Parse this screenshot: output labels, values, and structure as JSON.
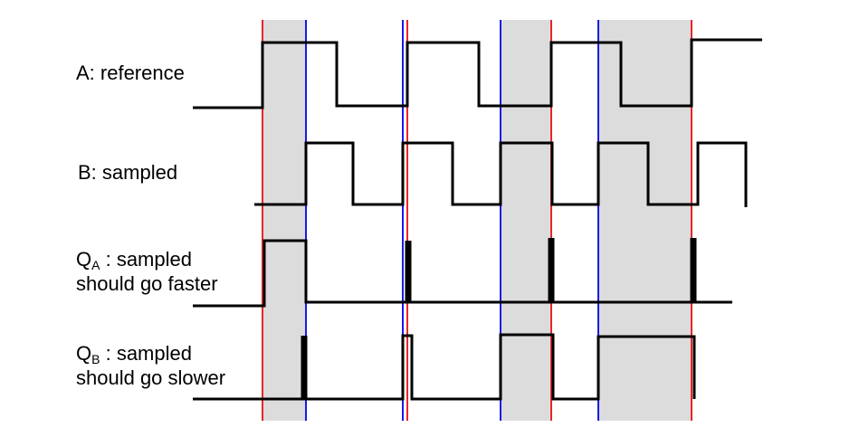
{
  "labels": {
    "a": "A: reference",
    "b": "B: sampled",
    "qa": {
      "main": "Q",
      "sub": "A",
      "rest": ": sampled",
      "line2": "should go faster"
    },
    "qb": {
      "main": "Q",
      "sub": "B",
      "rest": ": sampled",
      "line2": "should go slower"
    }
  },
  "colors": {
    "reference_edge": "#e8262a",
    "sampled_edge": "#1a1ae6",
    "shading": "#dcdcdc",
    "signal": "#000000"
  }
}
